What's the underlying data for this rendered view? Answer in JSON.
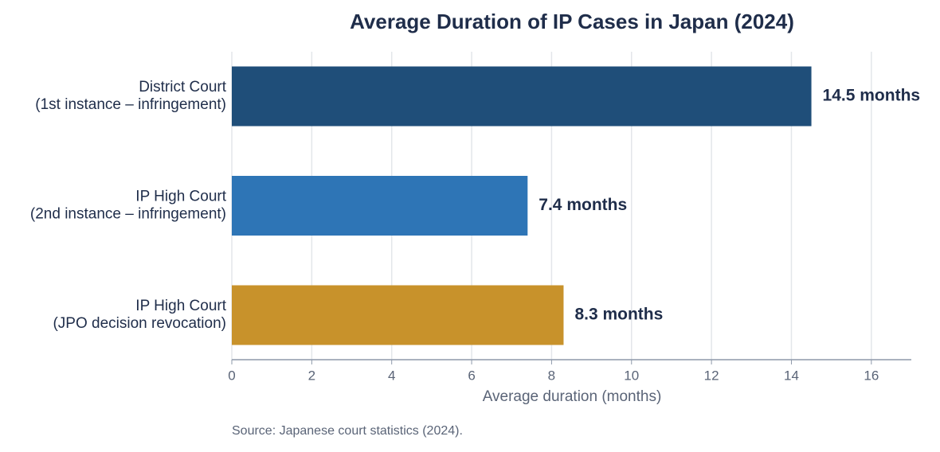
{
  "chart_data": {
    "type": "bar",
    "orientation": "horizontal",
    "title": "Average Duration of IP Cases in Japan (2024)",
    "categories": [
      [
        "District Court",
        "(1st instance – infringement)"
      ],
      [
        "IP High Court",
        "(2nd instance – infringement)"
      ],
      [
        "IP High Court",
        "(JPO decision revocation)"
      ]
    ],
    "values": [
      14.5,
      7.4,
      8.3
    ],
    "value_labels": [
      "14.5 months",
      "7.4 months",
      "8.3 months"
    ],
    "colors": [
      "#1f4e79",
      "#2e75b6",
      "#c8922b"
    ],
    "xlabel": "Average duration (months)",
    "xlim": [
      0,
      17
    ],
    "xticks": [
      0,
      2,
      4,
      6,
      8,
      10,
      12,
      14,
      16
    ],
    "grid": true,
    "source": "Source: Japanese court statistics (2024)."
  }
}
